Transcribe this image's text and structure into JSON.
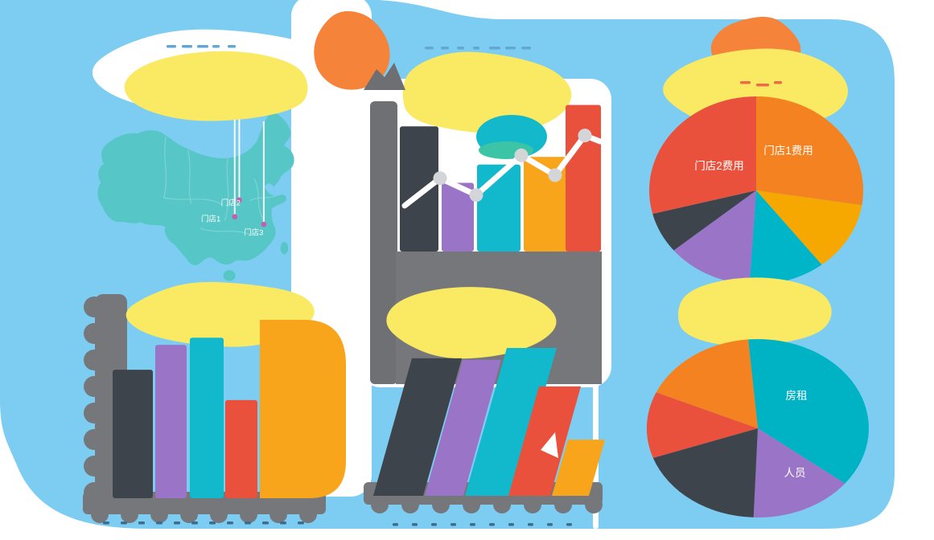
{
  "palette": {
    "blue": "#7ccdf1",
    "yellow": "#fae963",
    "gray": "#76777b",
    "gray2": "#6e7073",
    "dark": "#3e444b",
    "purple": "#9a74c6",
    "tealBar": "#12b8cc",
    "orangeBar": "#f9a51b",
    "red": "#e9513d",
    "mapTeal": "#57c6c6",
    "mapLine": "#84d7d6",
    "circleOrange": "#f5833a",
    "pieOrange": "#f58220",
    "amber": "#f7a800",
    "pieTeal1": "#00b5c8",
    "pieTeal2": "#00b3c4",
    "lineDot": "#d3d5d8",
    "marker": "#c45fae",
    "tick": "#3f6c8e",
    "tickTop": "#64a7d3",
    "tickRed": "#ee6a48"
  },
  "map": {
    "markers": [
      {
        "label": "门店1"
      },
      {
        "label": "门店2"
      },
      {
        "label": "门店3"
      }
    ]
  },
  "chart_data": [
    {
      "id": "store-map",
      "type": "map",
      "title": "",
      "region": "China",
      "markers": [
        "门店1",
        "门店2",
        "门店3"
      ],
      "note": "teal China map with three white callout lines and store markers; title text above is illegible in source"
    },
    {
      "id": "top-middle-bar-line",
      "type": "bar",
      "title": "",
      "categories": [
        "",
        "",
        "",
        "",
        ""
      ],
      "series": [
        {
          "name": "bars",
          "values": [
            82,
            45,
            57,
            62,
            96
          ]
        },
        {
          "name": "line",
          "values": [
            48,
            37,
            63,
            50,
            76
          ]
        }
      ],
      "colors": [
        "#3e444b",
        "#9a74c6",
        "#12b8cc",
        "#f9a51b",
        "#e9513d"
      ],
      "ylim": [
        0,
        100
      ],
      "grid": false,
      "note": "relative heights estimated from pixels; axis tick labels illegible in source"
    },
    {
      "id": "bottom-left-bar",
      "type": "bar",
      "title": "",
      "categories": [
        "",
        "",
        "",
        "",
        ""
      ],
      "values": [
        72,
        86,
        90,
        55,
        100
      ],
      "colors": [
        "#3e444b",
        "#9a74c6",
        "#12b8cc",
        "#e9513d",
        "#f9a51b"
      ],
      "ylim": [
        0,
        100
      ],
      "grid": false,
      "note": "relative heights estimated from pixels; axis tick labels illegible in source"
    },
    {
      "id": "bottom-middle-slanted-bar",
      "type": "bar",
      "title": "",
      "categories": [
        "",
        "",
        "",
        "",
        ""
      ],
      "values": [
        93,
        92,
        100,
        74,
        38
      ],
      "colors": [
        "#3e444b",
        "#9a74c6",
        "#12b8cc",
        "#e9513d",
        "#f9a51b"
      ],
      "ylim": [
        0,
        100
      ],
      "grid": false,
      "note": "slanted (skewed) bars; relative heights estimated from pixels"
    },
    {
      "id": "pie-cost-by-store",
      "type": "pie",
      "title": "",
      "labels": [
        "门店1费用",
        "",
        "",
        "",
        "",
        "门店2费用"
      ],
      "values": [
        27.5,
        12,
        11.5,
        13,
        7,
        29
      ],
      "colors": [
        "#f58220",
        "#f7a800",
        "#00b5c8",
        "#9a74c6",
        "#3e444b",
        "#e9513d"
      ],
      "start_angle": 0,
      "legend": "none",
      "note": "percentages estimated from slice angles"
    },
    {
      "id": "pie-cost-by-type",
      "type": "pie",
      "title": "",
      "labels": [
        "房租",
        "人员",
        "",
        "",
        ""
      ],
      "values": [
        37,
        15,
        19,
        12,
        17
      ],
      "colors": [
        "#00b3c4",
        "#9a74c6",
        "#3e444b",
        "#e9513d",
        "#f58220"
      ],
      "start_angle": -5,
      "legend": "none",
      "note": "percentages estimated from slice angles"
    }
  ]
}
